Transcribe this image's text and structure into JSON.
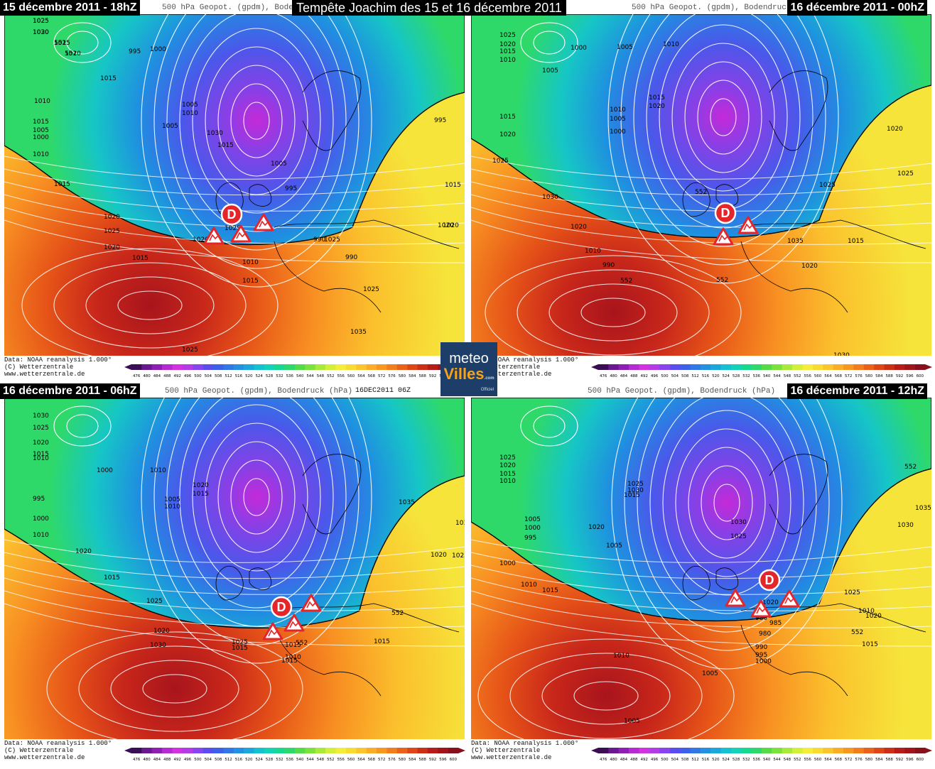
{
  "main_title": "Tempête Joachim des 15 et 16 décembre 2011",
  "logo": {
    "line1": "meteo",
    "line2": "Villes",
    "domain": ".com",
    "tag": "Officiel"
  },
  "footer": {
    "line1": "Data: NOAA reanalysis 1.000°",
    "line2": "(C) Wetterzentrale",
    "line3": "www.wetterzentrale.de"
  },
  "legend_scale": {
    "ticks": [
      "476",
      "480",
      "484",
      "488",
      "492",
      "496",
      "500",
      "504",
      "508",
      "512",
      "516",
      "520",
      "524",
      "528",
      "532",
      "536",
      "540",
      "544",
      "548",
      "552",
      "556",
      "560",
      "564",
      "568",
      "572",
      "576",
      "580",
      "584",
      "588",
      "592",
      "596",
      "600"
    ],
    "colors": [
      "#3a0e54",
      "#6a1891",
      "#8f1fb4",
      "#b62ad3",
      "#d332e0",
      "#b33be8",
      "#8a44ee",
      "#5b4cf0",
      "#3e5fe8",
      "#2f78e6",
      "#2490e2",
      "#1aa8dc",
      "#14c0d2",
      "#12d2b8",
      "#16d98f",
      "#2fd86a",
      "#53dc48",
      "#7be23c",
      "#a8e93a",
      "#d2ef3a",
      "#f3ee3a",
      "#f8dc34",
      "#fbc62d",
      "#fbad27",
      "#f89622",
      "#f37c1d",
      "#ea6119",
      "#de4617",
      "#cd2f16",
      "#b81c18",
      "#a0141a",
      "#87101c"
    ]
  },
  "panels": [
    {
      "date_label": "15 décembre 2011 - 18hZ",
      "header": "500 hPa Geopot. (gpdm), Bodendruck (hPa)",
      "stamp": "",
      "isobars": [
        "1025",
        "1020",
        "1015",
        "1010",
        "995",
        "1000",
        "1015",
        "1010",
        "1005",
        "1010",
        "1005",
        "1015",
        "1005",
        "1000",
        "1010",
        "1015",
        "1020",
        "1025",
        "1020",
        "1015",
        "1010",
        "1015",
        "1020",
        "1025",
        "1030",
        "1015",
        "1005",
        "995",
        "990",
        "990",
        "995",
        "1015",
        "1020",
        "1025",
        "1035",
        "1025",
        "1020",
        "1025",
        "1025",
        "1030",
        "552",
        "552"
      ],
      "storm": "D"
    },
    {
      "date_label": "16 décembre 2011 - 00hZ",
      "header": "500 hPa Geopot. (gpdm), Bodendruck (hPa)",
      "stamp": "",
      "isobars": [
        "1025",
        "1020",
        "1015",
        "1010",
        "1005",
        "1000",
        "1005",
        "1010",
        "1015",
        "1020",
        "1010",
        "1005",
        "1000",
        "1015",
        "1020",
        "1025",
        "1030",
        "1020",
        "1010",
        "990",
        "552",
        "552",
        "552",
        "1035",
        "1020",
        "1025",
        "1025",
        "1020",
        "1015",
        "1030"
      ],
      "storm": "D"
    },
    {
      "date_label": "16 décembre 2011 - 06hZ",
      "header": "500 hPa Geopot. (gpdm), Bodendruck (hPa)",
      "stamp": "16DEC2011 06Z",
      "isobars": [
        "1030",
        "1025",
        "1020",
        "1015",
        "1010",
        "1000",
        "995",
        "1000",
        "1010",
        "1020",
        "1015",
        "1005",
        "1010",
        "1010",
        "1020",
        "1015",
        "1025",
        "1030",
        "1025",
        "1015",
        "1015",
        "1010",
        "1020",
        "1015",
        "552",
        "552",
        "1035",
        "1030",
        "1025",
        "1020",
        "1015"
      ],
      "storm": "D"
    },
    {
      "date_label": "16 décembre 2011 - 12hZ",
      "header": "500 hPa Geopot. (gpdm), Bodendruck (hPa)",
      "stamp": "",
      "isobars": [
        "1025",
        "1020",
        "1015",
        "1010",
        "1005",
        "1000",
        "995",
        "1000",
        "1005",
        "1010",
        "1015",
        "1020",
        "1015",
        "1025",
        "1030",
        "1030",
        "1025",
        "1020",
        "980",
        "985",
        "980",
        "990",
        "995",
        "1000",
        "1005",
        "1010",
        "552",
        "552",
        "1035",
        "1030",
        "1025",
        "1020",
        "1015",
        "1010",
        "1005"
      ],
      "storm": "D"
    }
  ]
}
